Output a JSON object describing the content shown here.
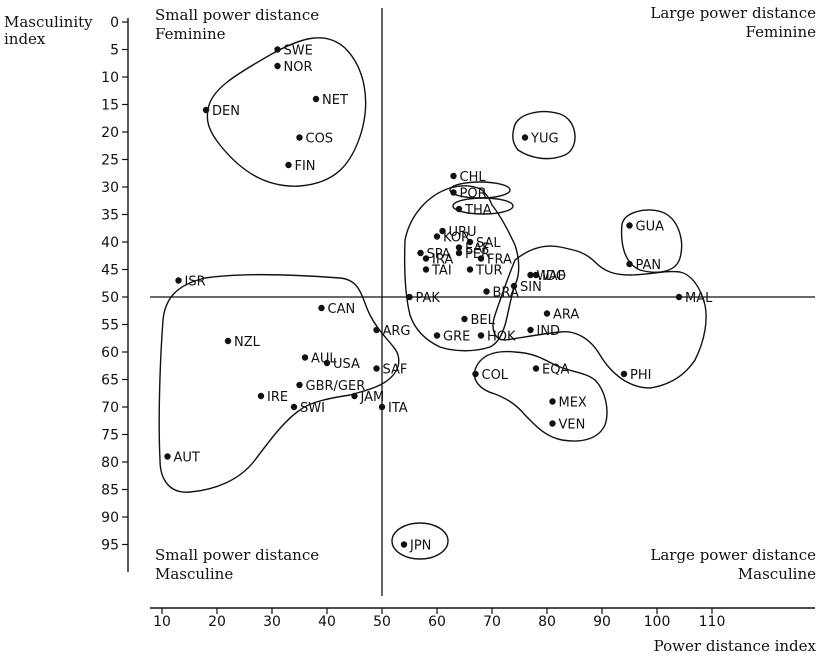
{
  "chart_data": {
    "type": "scatter",
    "xlabel": "Power distance index",
    "ylabel_line1": "Masculinity",
    "ylabel_line2": "index",
    "xlim": [
      10,
      110
    ],
    "ylim": [
      0,
      95
    ],
    "x_ticks": [
      10,
      20,
      30,
      40,
      50,
      60,
      70,
      80,
      90,
      100,
      110
    ],
    "y_ticks": [
      0,
      5,
      10,
      15,
      20,
      25,
      30,
      35,
      40,
      45,
      50,
      55,
      60,
      65,
      70,
      75,
      80,
      85,
      90,
      95
    ],
    "divider_x": 50,
    "divider_y": 50,
    "y_inverted": true,
    "quadrant_labels": {
      "top_left": [
        "Small power distance",
        "Feminine"
      ],
      "top_right": [
        "Large power distance",
        "Feminine"
      ],
      "bottom_left": [
        "Small power distance",
        "Masculine"
      ],
      "bottom_right": [
        "Large power distance",
        "Masculine"
      ]
    },
    "points": [
      {
        "label": "SWE",
        "x": 31,
        "y": 5
      },
      {
        "label": "NOR",
        "x": 31,
        "y": 8
      },
      {
        "label": "NET",
        "x": 38,
        "y": 14
      },
      {
        "label": "DEN",
        "x": 18,
        "y": 16
      },
      {
        "label": "COS",
        "x": 35,
        "y": 21
      },
      {
        "label": "FIN",
        "x": 33,
        "y": 26
      },
      {
        "label": "YUG",
        "x": 76,
        "y": 21
      },
      {
        "label": "CHL",
        "x": 63,
        "y": 28
      },
      {
        "label": "POR",
        "x": 63,
        "y": 31
      },
      {
        "label": "THA",
        "x": 64,
        "y": 34
      },
      {
        "label": "URU",
        "x": 61,
        "y": 38
      },
      {
        "label": "EAF",
        "x": 64,
        "y": 41
      },
      {
        "label": "KOR",
        "x": 60,
        "y": 39
      },
      {
        "label": "SAL",
        "x": 66,
        "y": 40
      },
      {
        "label": "SPA",
        "x": 57,
        "y": 42
      },
      {
        "label": "FRA",
        "x": 68,
        "y": 43
      },
      {
        "label": "IRA",
        "x": 58,
        "y": 43
      },
      {
        "label": "PER",
        "x": 64,
        "y": 42
      },
      {
        "label": "TUR",
        "x": 66,
        "y": 45
      },
      {
        "label": "TAI",
        "x": 58,
        "y": 45
      },
      {
        "label": "BRA",
        "x": 69,
        "y": 49
      },
      {
        "label": "WAF",
        "x": 77,
        "y": 46
      },
      {
        "label": "IDO",
        "x": 78,
        "y": 46
      },
      {
        "label": "SIN",
        "x": 74,
        "y": 48
      },
      {
        "label": "GUA",
        "x": 95,
        "y": 37
      },
      {
        "label": "PAN",
        "x": 95,
        "y": 44
      },
      {
        "label": "ISR",
        "x": 13,
        "y": 47
      },
      {
        "label": "PAK",
        "x": 55,
        "y": 50
      },
      {
        "label": "ARA",
        "x": 80,
        "y": 53
      },
      {
        "label": "MAL",
        "x": 104,
        "y": 50
      },
      {
        "label": "CAN",
        "x": 39,
        "y": 52
      },
      {
        "label": "BEL",
        "x": 65,
        "y": 54
      },
      {
        "label": "GRE",
        "x": 60,
        "y": 57
      },
      {
        "label": "ARG",
        "x": 49,
        "y": 56
      },
      {
        "label": "HOK",
        "x": 68,
        "y": 57
      },
      {
        "label": "IND",
        "x": 77,
        "y": 56
      },
      {
        "label": "NZL",
        "x": 22,
        "y": 58
      },
      {
        "label": "AUL",
        "x": 36,
        "y": 61
      },
      {
        "label": "USA",
        "x": 40,
        "y": 62
      },
      {
        "label": "SAF",
        "x": 49,
        "y": 63
      },
      {
        "label": "GBR/GER",
        "x": 35,
        "y": 66
      },
      {
        "label": "COL",
        "x": 67,
        "y": 64
      },
      {
        "label": "EQA",
        "x": 78,
        "y": 63
      },
      {
        "label": "PHI",
        "x": 94,
        "y": 64
      },
      {
        "label": "IRE",
        "x": 28,
        "y": 68
      },
      {
        "label": "JAM",
        "x": 45,
        "y": 68
      },
      {
        "label": "MEX",
        "x": 81,
        "y": 69
      },
      {
        "label": "SWI",
        "x": 34,
        "y": 70
      },
      {
        "label": "ITA",
        "x": 50,
        "y": 70
      },
      {
        "label": "VEN",
        "x": 81,
        "y": 73
      },
      {
        "label": "AUT",
        "x": 11,
        "y": 79
      },
      {
        "label": "JPN",
        "x": 54,
        "y": 95
      }
    ]
  }
}
